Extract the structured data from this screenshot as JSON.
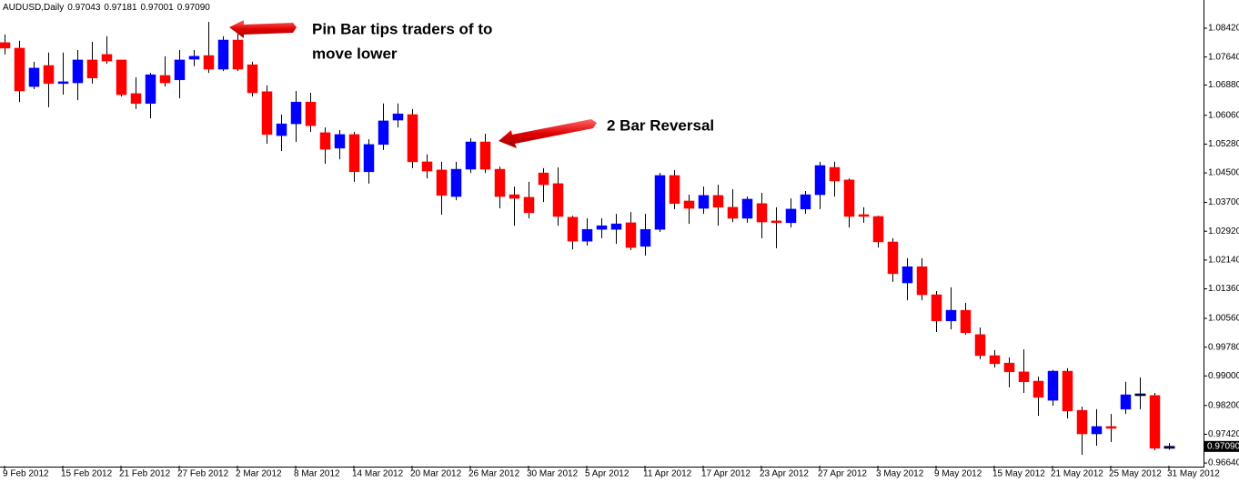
{
  "chart_data": {
    "type": "candlestick",
    "title": "AUDUSD,Daily",
    "header_values": [
      {
        "value": 0.97043,
        "label": "0.97043"
      },
      {
        "value": 0.97181,
        "label": "0.97181"
      },
      {
        "value": 0.97001,
        "label": "0.97001"
      },
      {
        "value": 0.9709,
        "label": "0.97090"
      }
    ],
    "last_price": {
      "value": 0.9709,
      "label": "0.97090"
    },
    "up_color": "#0000ff",
    "down_color": "#ff0000",
    "wick_color": "#000000",
    "categories": [
      "9 Feb 2012",
      null,
      null,
      null,
      "15 Feb 2012",
      null,
      null,
      null,
      "21 Feb 2012",
      null,
      null,
      null,
      "27 Feb 2012",
      null,
      null,
      null,
      "2 Mar 2012",
      null,
      null,
      null,
      "8 Mar 2012",
      null,
      null,
      null,
      "14 Mar 2012",
      null,
      null,
      null,
      "20 Mar 2012",
      null,
      null,
      null,
      "26 Mar 2012",
      null,
      null,
      null,
      "30 Mar 2012",
      null,
      null,
      null,
      "5 Apr 2012",
      null,
      null,
      null,
      "11 Apr 2012",
      null,
      null,
      null,
      "17 Apr 2012",
      null,
      null,
      null,
      "23 Apr 2012",
      null,
      null,
      null,
      "27 Apr 2012",
      null,
      null,
      null,
      "3 May 2012",
      null,
      null,
      null,
      "9 May 2012",
      null,
      null,
      null,
      "15 May 2012",
      null,
      null,
      null,
      "21 May 2012",
      null,
      null,
      null,
      "25 May 2012",
      null,
      null,
      null,
      "31 May 2012"
    ],
    "open": [
      1.0803,
      1.0788,
      1.0684,
      1.0741,
      1.0692,
      1.0694,
      1.0756,
      1.0771,
      1.0756,
      1.0665,
      1.0638,
      1.0714,
      1.0702,
      1.0758,
      1.0768,
      1.0731,
      1.081,
      1.0743,
      1.067,
      1.0551,
      1.0583,
      1.0642,
      1.0559,
      1.0517,
      1.0554,
      1.0453,
      1.0527,
      1.0593,
      1.0608,
      1.048,
      1.0458,
      1.0386,
      1.046,
      1.0534,
      1.046,
      1.0391,
      1.0384,
      1.045,
      1.0421,
      1.033,
      1.0265,
      1.0297,
      1.0297,
      1.0315,
      1.0251,
      1.0297,
      1.0443,
      1.0374,
      1.0354,
      1.0389,
      1.0357,
      1.0327,
      1.0367,
      1.032,
      1.0315,
      1.0352,
      1.0391,
      1.0465,
      1.0431,
      1.0337,
      1.0332,
      1.0263,
      1.0152,
      1.0196,
      1.012,
      1.0049,
      1.0078,
      1.0012,
      0.9955,
      0.9935,
      0.9911,
      0.9886,
      0.9834,
      0.9913,
      0.9807,
      0.9743,
      0.9763,
      0.981,
      0.9847,
      0.9847,
      0.97043
    ],
    "high": [
      1.0825,
      1.0808,
      1.0751,
      1.0776,
      1.0776,
      1.0783,
      1.0805,
      1.082,
      1.0756,
      1.0709,
      1.0721,
      1.0766,
      1.0783,
      1.0783,
      1.0859,
      1.082,
      1.0832,
      1.0751,
      1.0687,
      1.0608,
      1.0672,
      1.0667,
      1.0573,
      1.0566,
      1.0561,
      1.0541,
      1.0638,
      1.0638,
      1.0623,
      1.05,
      1.048,
      1.048,
      1.0544,
      1.0556,
      1.0467,
      1.0413,
      1.0426,
      1.0463,
      1.0465,
      1.0334,
      1.0327,
      1.0327,
      1.0339,
      1.0344,
      1.0339,
      1.045,
      1.0458,
      1.0391,
      1.0413,
      1.0418,
      1.0406,
      1.0386,
      1.0396,
      1.0357,
      1.0381,
      1.0401,
      1.048,
      1.048,
      1.0435,
      1.0357,
      1.0334,
      1.0273,
      1.0219,
      1.0219,
      1.013,
      1.014,
      1.0098,
      1.0031,
      0.997,
      0.995,
      0.9972,
      0.9898,
      0.9916,
      0.9921,
      0.9817,
      0.981,
      0.9797,
      0.9884,
      0.9896,
      0.9854,
      0.97181
    ],
    "low": [
      1.0771,
      1.0642,
      1.0677,
      1.0628,
      1.0662,
      1.0647,
      1.0692,
      1.0746,
      1.0657,
      1.0623,
      1.0598,
      1.0684,
      1.0652,
      1.0739,
      1.0721,
      1.0726,
      1.0726,
      1.0657,
      1.0529,
      1.0509,
      1.0534,
      1.0561,
      1.0475,
      1.0487,
      1.0426,
      1.0421,
      1.0512,
      1.0573,
      1.0463,
      1.0435,
      1.0337,
      1.0376,
      1.045,
      1.045,
      1.0354,
      1.0307,
      1.0327,
      1.0371,
      1.0307,
      1.0243,
      1.0253,
      1.0273,
      1.0258,
      1.0241,
      1.0226,
      1.029,
      1.0352,
      1.0312,
      1.0339,
      1.0307,
      1.0317,
      1.0315,
      1.0273,
      1.0246,
      1.0302,
      1.0339,
      1.0352,
      1.0386,
      1.0302,
      1.0315,
      1.0248,
      1.0155,
      1.0105,
      1.0105,
      1.0019,
      1.0026,
      1.0012,
      0.9945,
      0.9923,
      0.9869,
      0.9854,
      0.9792,
      0.9819,
      0.9785,
      0.9686,
      0.9711,
      0.9721,
      0.9797,
      0.981,
      0.9699,
      0.97001
    ],
    "close": [
      1.0788,
      1.0672,
      1.0734,
      1.0692,
      1.0697,
      1.0756,
      1.0707,
      1.0753,
      1.0662,
      1.0638,
      1.0716,
      1.0694,
      1.0756,
      1.0766,
      1.0731,
      1.081,
      1.0731,
      1.0667,
      1.0554,
      1.0583,
      1.0642,
      1.0578,
      1.0514,
      1.0554,
      1.0453,
      1.0527,
      1.0591,
      1.061,
      1.048,
      1.0455,
      1.0389,
      1.046,
      1.0534,
      1.046,
      1.0386,
      1.0381,
      1.0342,
      1.0418,
      1.0332,
      1.0265,
      1.0297,
      1.0307,
      1.0312,
      1.0248,
      1.0297,
      1.0443,
      1.0367,
      1.0354,
      1.0389,
      1.0357,
      1.0327,
      1.0379,
      1.0317,
      1.0315,
      1.0352,
      1.0391,
      1.047,
      1.0428,
      1.0332,
      1.0332,
      1.0263,
      1.0177,
      1.0196,
      1.012,
      1.0049,
      1.0078,
      1.0017,
      0.9955,
      0.9933,
      0.9911,
      0.9884,
      0.9842,
      0.9913,
      0.9805,
      0.9743,
      0.9763,
      0.9758,
      0.9849,
      0.9851,
      0.9704,
      0.9709
    ],
    "ylim": [
      0.96568,
      1.09184
    ],
    "yticks": [
      {
        "value": 1.0842,
        "label": "1.08420"
      },
      {
        "value": 1.0764,
        "label": "1.07640"
      },
      {
        "value": 1.0688,
        "label": "1.06880"
      },
      {
        "value": 1.0606,
        "label": "1.06060"
      },
      {
        "value": 1.0528,
        "label": "1.05280"
      },
      {
        "value": 1.045,
        "label": "1.04500"
      },
      {
        "value": 1.037,
        "label": "1.03700"
      },
      {
        "value": 1.0292,
        "label": "1.02920"
      },
      {
        "value": 1.0214,
        "label": "1.02140"
      },
      {
        "value": 1.0136,
        "label": "1.01360"
      },
      {
        "value": 1.0056,
        "label": "1.00560"
      },
      {
        "value": 0.9978,
        "label": "0.99780"
      },
      {
        "value": 0.99,
        "label": "0.99000"
      },
      {
        "value": 0.982,
        "label": "0.98200"
      },
      {
        "value": 0.9742,
        "label": "0.97420"
      },
      {
        "value": 0.9664,
        "label": "0.96640"
      }
    ],
    "annotations": [
      {
        "lines": [
          "Pin Bar tips traders of to",
          "move lower"
        ]
      },
      {
        "lines": [
          "2 Bar Reversal"
        ]
      }
    ]
  }
}
